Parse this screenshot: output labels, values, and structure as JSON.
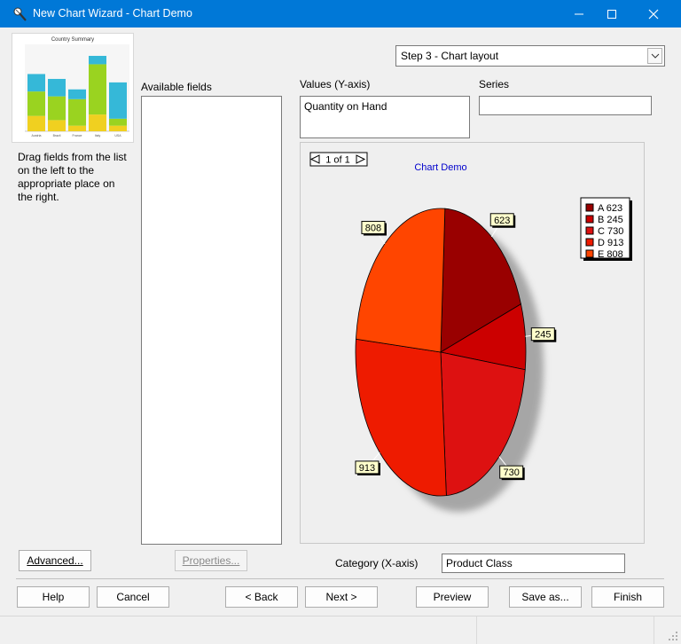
{
  "window": {
    "title": "New Chart Wizard - Chart Demo",
    "controls": {
      "minimize": "minimize-icon",
      "maximize": "maximize-icon",
      "close": "close-icon"
    }
  },
  "thumbnail": {
    "title": "Country Summary",
    "bars": [
      {
        "cat": "Austria",
        "segments": [
          0.22,
          0.35,
          0.25
        ]
      },
      {
        "cat": "Brazil",
        "segments": [
          0.16,
          0.34,
          0.25
        ]
      },
      {
        "cat": "France",
        "segments": [
          0.08,
          0.38,
          0.14
        ]
      },
      {
        "cat": "Italy",
        "segments": [
          0.24,
          0.72,
          0.12
        ]
      },
      {
        "cat": "USA",
        "segments": [
          0.08,
          0.1,
          0.52
        ]
      }
    ]
  },
  "instructions": "Drag fields from the list on the left to the appropriate place on the right.",
  "step_select": {
    "value": "Step 3 - Chart layout"
  },
  "labels": {
    "available_fields": "Available fields",
    "values": "Values (Y-axis)",
    "series": "Series",
    "category": "Category (X-axis)"
  },
  "fields": {
    "values": "Quantity on Hand",
    "series": "",
    "category": "Product Class"
  },
  "chart_data": {
    "type": "pie",
    "title": "Chart Demo",
    "pager": "1 of 1",
    "slices": [
      {
        "label": "A",
        "value": 623,
        "color": "#990000"
      },
      {
        "label": "B",
        "value": 245,
        "color": "#cc0000"
      },
      {
        "label": "C",
        "value": 730,
        "color": "#dd1111"
      },
      {
        "label": "D",
        "value": 913,
        "color": "#ee1b00"
      },
      {
        "label": "E",
        "value": 808,
        "color": "#ff4500"
      }
    ],
    "legend": [
      "A 623",
      "B 245",
      "C 730",
      "D 913",
      "E 808"
    ],
    "legend_position": "top-right"
  },
  "buttons": {
    "advanced": "Advanced...",
    "properties": "Properties...",
    "help": "Help",
    "cancel": "Cancel",
    "back": "< Back",
    "next": "Next >",
    "preview": "Preview",
    "save_as": "Save as...",
    "finish": "Finish"
  }
}
